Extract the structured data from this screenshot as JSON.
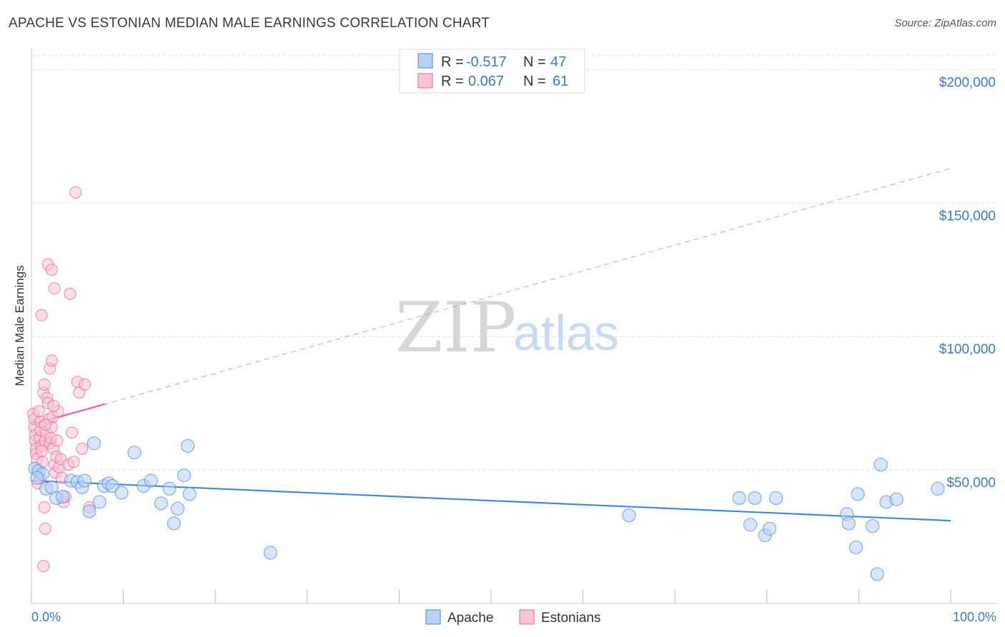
{
  "title": "APACHE VS ESTONIAN MEDIAN MALE EARNINGS CORRELATION CHART",
  "source": "Source: ZipAtlas.com",
  "watermark": {
    "zip": "ZIP",
    "atlas": "atlas"
  },
  "colors": {
    "apache": "#4a86d8",
    "apache_fill": "#b7d2f5",
    "estonian": "#e86a93",
    "estonian_fill": "#f8c3d4",
    "tick": "#3d79c7",
    "grid": "#dddddd"
  },
  "legend": {
    "series": [
      {
        "r_label": "R =",
        "r_value": "-0.517",
        "n_label": "N =",
        "n_value": "47"
      },
      {
        "r_label": "R =",
        "r_value": "0.067",
        "n_label": "N =",
        "n_value": "61"
      }
    ]
  },
  "chart_data": {
    "type": "scatter",
    "title": "APACHE VS ESTONIAN MEDIAN MALE EARNINGS CORRELATION CHART",
    "xlabel": "",
    "ylabel": "Median Male Earnings",
    "xlim": [
      0,
      100
    ],
    "ylim": [
      0,
      210000
    ],
    "x_tick_labels": [
      "0.0%",
      "100.0%"
    ],
    "y_ticks": [
      50000,
      100000,
      150000,
      200000
    ],
    "y_tick_labels": [
      "$50,000",
      "$100,000",
      "$150,000",
      "$200,000"
    ],
    "legend_position": "bottom-center",
    "series": [
      {
        "name": "Apache",
        "r": -0.517,
        "n": 47,
        "trend": {
          "x": [
            0,
            100
          ],
          "y": [
            46000,
            31000
          ],
          "style": "solid"
        },
        "points": [
          [
            0.4,
            50500
          ],
          [
            0.8,
            49500
          ],
          [
            1.2,
            48500
          ],
          [
            1.6,
            43000
          ],
          [
            2.2,
            43500
          ],
          [
            2.7,
            39500
          ],
          [
            3.4,
            40000
          ],
          [
            4.3,
            46000
          ],
          [
            5.0,
            45500
          ],
          [
            5.5,
            43500
          ],
          [
            5.8,
            46000
          ],
          [
            6.3,
            34500
          ],
          [
            6.8,
            60000
          ],
          [
            7.4,
            38000
          ],
          [
            7.9,
            44000
          ],
          [
            8.4,
            45000
          ],
          [
            8.8,
            44000
          ],
          [
            9.8,
            41500
          ],
          [
            11.2,
            56500
          ],
          [
            12.2,
            44000
          ],
          [
            13.0,
            46000
          ],
          [
            14.1,
            37500
          ],
          [
            15.0,
            43000
          ],
          [
            15.5,
            30000
          ],
          [
            15.9,
            35500
          ],
          [
            16.6,
            48000
          ],
          [
            17.0,
            59000
          ],
          [
            17.2,
            41000
          ],
          [
            26.0,
            19000
          ],
          [
            65.0,
            33000
          ],
          [
            77.0,
            39500
          ],
          [
            78.2,
            29500
          ],
          [
            78.7,
            39500
          ],
          [
            79.8,
            25500
          ],
          [
            80.3,
            28000
          ],
          [
            81.0,
            39500
          ],
          [
            88.7,
            33500
          ],
          [
            88.9,
            30000
          ],
          [
            89.7,
            21000
          ],
          [
            89.9,
            41000
          ],
          [
            91.5,
            29000
          ],
          [
            92.0,
            11000
          ],
          [
            92.4,
            52000
          ],
          [
            93.0,
            38000
          ],
          [
            94.1,
            39000
          ],
          [
            98.6,
            43000
          ],
          [
            0.6,
            47000
          ]
        ]
      },
      {
        "name": "Estonians",
        "r": 0.067,
        "n": 61,
        "trend": {
          "x": [
            0,
            100
          ],
          "y": [
            67000,
            163000
          ],
          "solid_until": 8,
          "style": "dashed"
        },
        "points": [
          [
            0.2,
            71000
          ],
          [
            0.3,
            69000
          ],
          [
            0.3,
            66000
          ],
          [
            0.4,
            63000
          ],
          [
            0.4,
            61000
          ],
          [
            0.5,
            58000
          ],
          [
            0.5,
            56000
          ],
          [
            0.6,
            54000
          ],
          [
            0.7,
            45000
          ],
          [
            0.8,
            72000
          ],
          [
            0.9,
            62000
          ],
          [
            1.0,
            65000
          ],
          [
            1.0,
            68000
          ],
          [
            1.1,
            59000
          ],
          [
            1.1,
            57000
          ],
          [
            1.2,
            53000
          ],
          [
            1.3,
            79000
          ],
          [
            1.4,
            82000
          ],
          [
            1.5,
            61000
          ],
          [
            1.6,
            64000
          ],
          [
            1.7,
            77000
          ],
          [
            1.8,
            75000
          ],
          [
            1.9,
            69000
          ],
          [
            2.0,
            60000
          ],
          [
            2.1,
            62000
          ],
          [
            2.2,
            66000
          ],
          [
            2.3,
            70000
          ],
          [
            2.4,
            58000
          ],
          [
            2.5,
            52000
          ],
          [
            2.6,
            49000
          ],
          [
            2.7,
            55000
          ],
          [
            2.8,
            61000
          ],
          [
            2.9,
            72000
          ],
          [
            3.0,
            51000
          ],
          [
            3.2,
            54000
          ],
          [
            3.3,
            47000
          ],
          [
            3.5,
            38000
          ],
          [
            3.7,
            40000
          ],
          [
            4.0,
            52000
          ],
          [
            4.4,
            64000
          ],
          [
            4.6,
            53000
          ],
          [
            5.0,
            83000
          ],
          [
            5.2,
            79000
          ],
          [
            5.5,
            58000
          ],
          [
            5.8,
            82000
          ],
          [
            6.3,
            36000
          ],
          [
            1.4,
            36000
          ],
          [
            1.5,
            28000
          ],
          [
            1.3,
            14000
          ],
          [
            2.0,
            88000
          ],
          [
            2.2,
            91000
          ],
          [
            1.1,
            108000
          ],
          [
            1.8,
            127000
          ],
          [
            2.2,
            125000
          ],
          [
            2.5,
            118000
          ],
          [
            4.2,
            116000
          ],
          [
            4.8,
            154000
          ],
          [
            0.9,
            47000
          ],
          [
            0.6,
            50000
          ],
          [
            1.5,
            67000
          ],
          [
            2.4,
            74000
          ]
        ]
      }
    ]
  }
}
